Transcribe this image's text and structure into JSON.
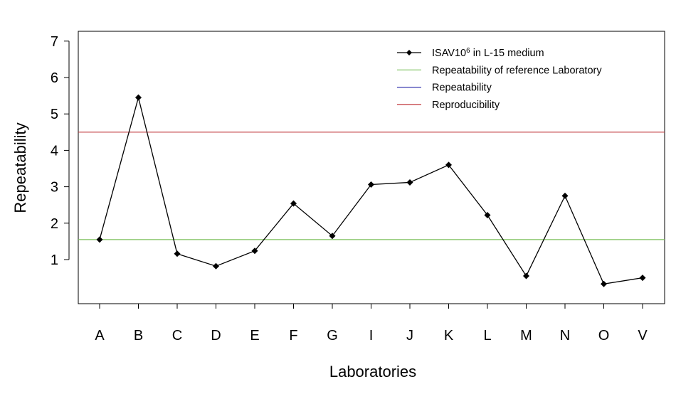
{
  "chart_data": {
    "type": "line",
    "xlabel": "Laboratories",
    "ylabel": "Repeatability",
    "categories": [
      "A",
      "B",
      "C",
      "D",
      "E",
      "F",
      "G",
      "I",
      "J",
      "K",
      "L",
      "M",
      "N",
      "O",
      "V"
    ],
    "ylim": [
      -0.3,
      7.2
    ],
    "yticks": [
      1,
      2,
      3,
      4,
      5,
      6,
      7
    ],
    "grid": false,
    "legend_position": "top-right",
    "series": [
      {
        "name": "ISAV10",
        "name_superscript": "6",
        "name_suffix": " in L-15 medium",
        "color": "#000000",
        "marker": "diamond",
        "values": [
          1.55,
          5.45,
          1.16,
          0.82,
          1.24,
          2.54,
          1.65,
          3.06,
          3.12,
          3.6,
          2.22,
          0.55,
          2.75,
          0.33,
          0.5
        ]
      }
    ],
    "reference_lines": [
      {
        "name": "Repeatability of reference Laboratory",
        "value": 1.55,
        "color": "#7cc05c",
        "drawn": true
      },
      {
        "name": "Repeatability",
        "value": null,
        "color": "#3838b0",
        "drawn": false
      },
      {
        "name": "Reproducibility",
        "value": 4.5,
        "color": "#c0393c",
        "drawn": true
      }
    ]
  }
}
